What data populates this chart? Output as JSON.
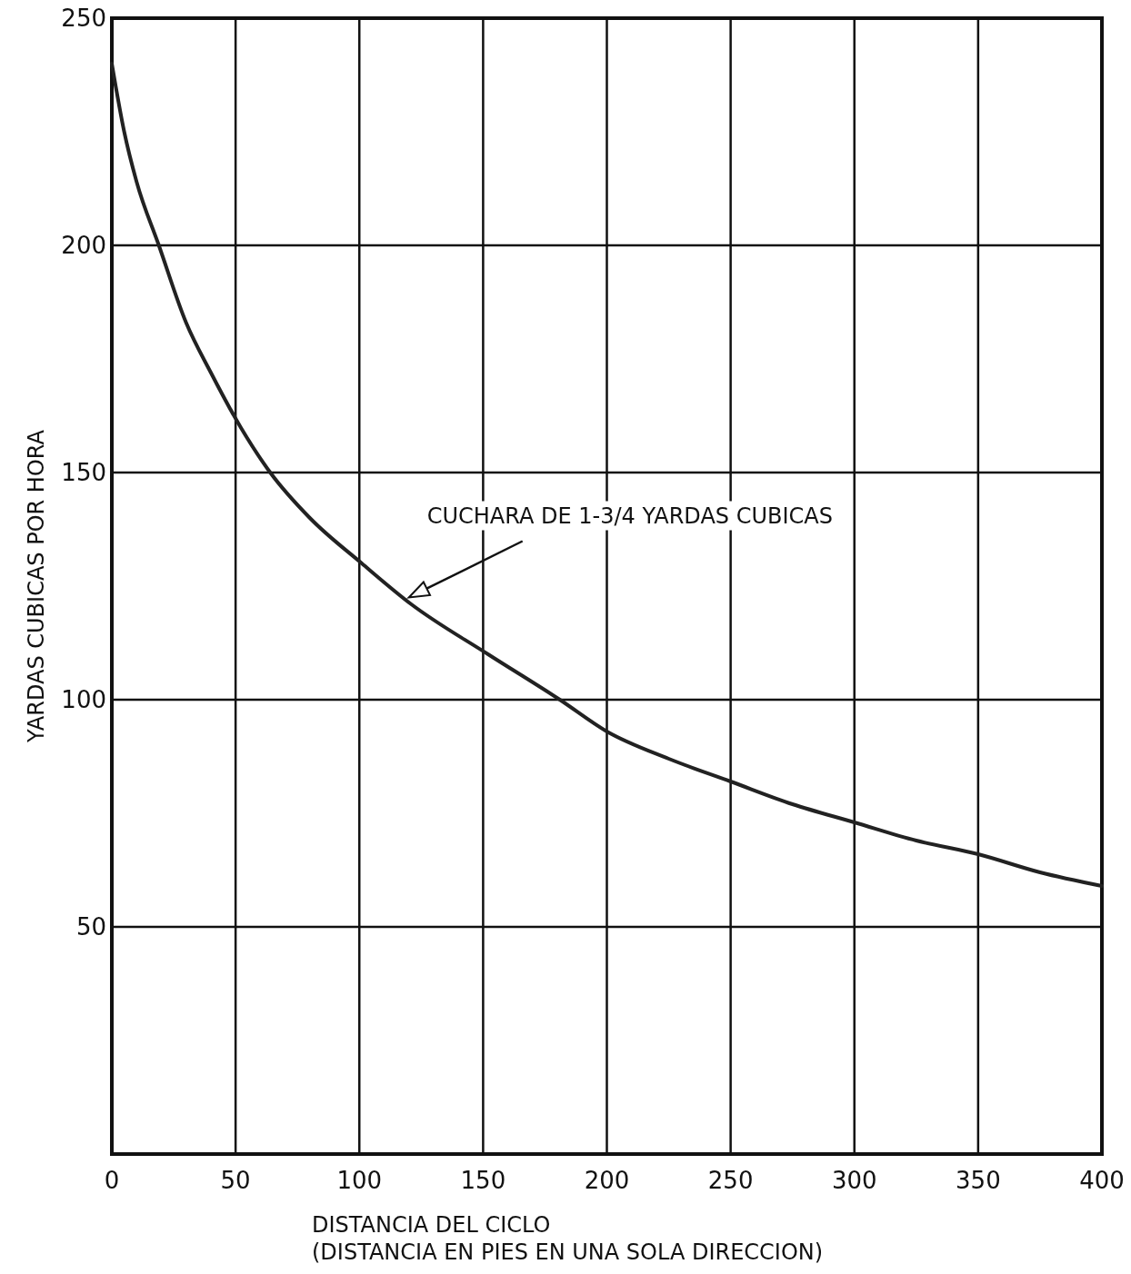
{
  "chart_data": {
    "type": "line",
    "xlabel": "DISTANCIA DEL CICLO\n(DISTANCIA EN PIES EN UNA SOLA DIRECCION)",
    "ylabel": "YARDAS CUBICAS POR HORA",
    "x": [
      0,
      5,
      10,
      19,
      30,
      40,
      52,
      64,
      80,
      101,
      121,
      152,
      181,
      200,
      225,
      250,
      275,
      300,
      325,
      350,
      375,
      400
    ],
    "series": [
      {
        "color": "#222222",
        "values": [
          240,
          225,
          214,
          200,
          183,
          172,
          160,
          150,
          140,
          130,
          121,
          110,
          100,
          93,
          87,
          82,
          77,
          73,
          69,
          66,
          62,
          59
        ]
      }
    ],
    "xlim": [
      0,
      400
    ],
    "xticks": [
      0,
      50,
      100,
      150,
      200,
      250,
      300,
      350,
      400
    ],
    "ylim": [
      0,
      250
    ],
    "yticks": [
      50,
      100,
      150,
      200,
      250
    ],
    "grid": true,
    "marker": "none",
    "line_style": "solid",
    "annotations": [
      "CUCHARA DE 1-3/4 YARDAS CUBICAS"
    ]
  }
}
